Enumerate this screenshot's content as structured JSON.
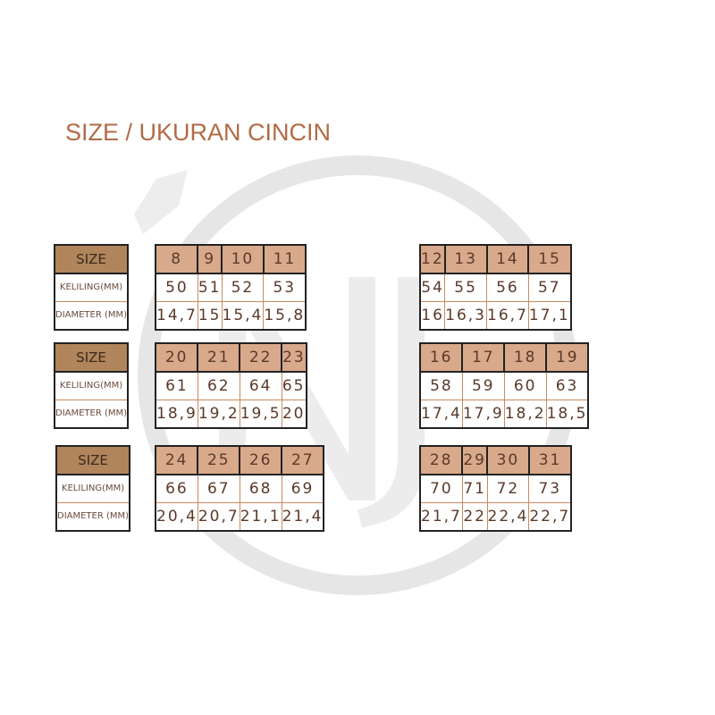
{
  "title": "SIZE / UKURAN CINCIN",
  "labels": {
    "size": "SIZE",
    "keliling": "KELILING(MM)",
    "diameter": "DIAMETER (MM)"
  },
  "colors": {
    "label_header": "#b0855b",
    "size_header": "#d9a98b",
    "title": "#b26b45",
    "grid": "#c98a5c"
  },
  "watermark": "NJ",
  "tables": [
    {
      "sizes": [
        "8",
        "9",
        "10",
        "11"
      ],
      "keliling": [
        "50",
        "51",
        "52",
        "53"
      ],
      "diameter": [
        "14,7",
        "15",
        "15,4",
        "15,8"
      ]
    },
    {
      "sizes": [
        "12",
        "13",
        "14",
        "15"
      ],
      "keliling": [
        "54",
        "55",
        "56",
        "57"
      ],
      "diameter": [
        "16",
        "16,3",
        "16,7",
        "17,1"
      ]
    },
    {
      "sizes": [
        "20",
        "21",
        "22",
        "23"
      ],
      "keliling": [
        "61",
        "62",
        "64",
        "65"
      ],
      "diameter": [
        "18,9",
        "19,2",
        "19,5",
        "20"
      ]
    },
    {
      "sizes": [
        "16",
        "17",
        "18",
        "19"
      ],
      "keliling": [
        "58",
        "59",
        "60",
        "63"
      ],
      "diameter": [
        "17,4",
        "17,9",
        "18,2",
        "18,5"
      ]
    },
    {
      "sizes": [
        "24",
        "25",
        "26",
        "27"
      ],
      "keliling": [
        "66",
        "67",
        "68",
        "69"
      ],
      "diameter": [
        "20,4",
        "20,7",
        "21,1",
        "21,4"
      ]
    },
    {
      "sizes": [
        "28",
        "29",
        "30",
        "31"
      ],
      "keliling": [
        "70",
        "71",
        "72",
        "73"
      ],
      "diameter": [
        "21,7",
        "22",
        "22,4",
        "22,7"
      ]
    }
  ]
}
